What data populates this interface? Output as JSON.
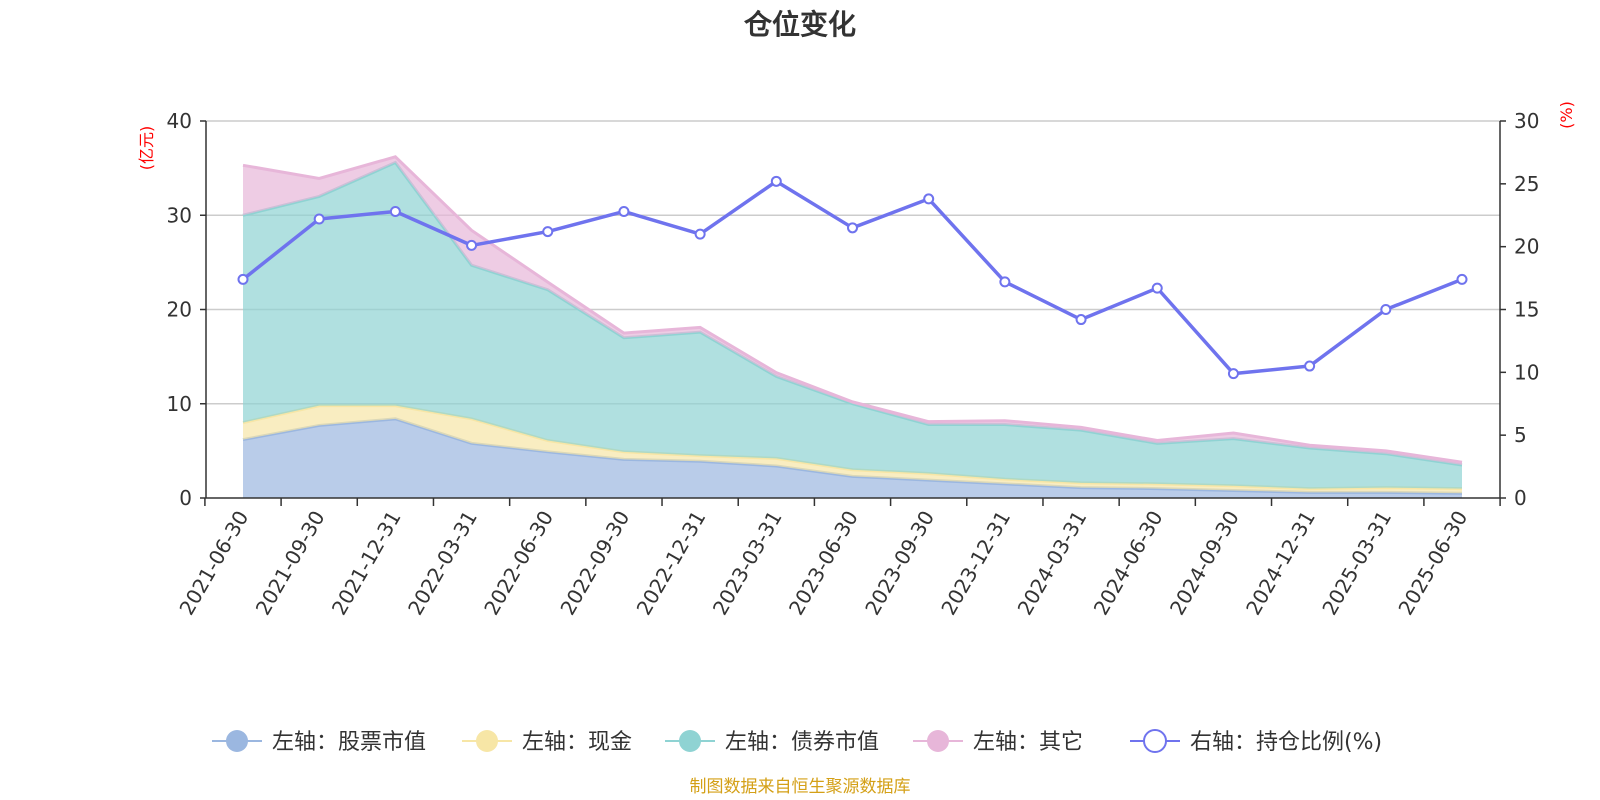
{
  "chart_data": {
    "type": "area",
    "title": "仓位变化",
    "left_axis_unit": "(亿元)",
    "right_axis_unit": "(%)",
    "left_ylim": [
      0,
      40
    ],
    "left_ticks": [
      0,
      10,
      20,
      30,
      40
    ],
    "right_ylim": [
      0,
      30
    ],
    "right_ticks": [
      0,
      5,
      10,
      15,
      20,
      25,
      30
    ],
    "grid": true,
    "legend_position": "bottom",
    "categories": [
      "2021-06-30",
      "2021-09-30",
      "2021-12-31",
      "2022-03-31",
      "2022-06-30",
      "2022-09-30",
      "2022-12-31",
      "2023-03-31",
      "2023-06-30",
      "2023-09-30",
      "2023-12-31",
      "2024-03-31",
      "2024-06-30",
      "2024-09-30",
      "2024-12-31",
      "2025-03-31",
      "2025-06-30"
    ],
    "stacked_series": [
      {
        "name": "左轴：股票市值",
        "axis": "left",
        "color": "#9bb7e0",
        "values": [
          6.2,
          7.7,
          8.4,
          5.8,
          4.9,
          4.1,
          3.9,
          3.4,
          2.3,
          1.9,
          1.5,
          1.1,
          1.0,
          0.8,
          0.6,
          0.6,
          0.5
        ]
      },
      {
        "name": "左轴：现金",
        "axis": "left",
        "color": "#f7e6a6",
        "values": [
          1.8,
          2.1,
          1.4,
          2.6,
          1.2,
          0.8,
          0.6,
          0.8,
          0.7,
          0.7,
          0.5,
          0.5,
          0.5,
          0.5,
          0.4,
          0.5,
          0.5
        ]
      },
      {
        "name": "左轴：债券市值",
        "axis": "left",
        "color": "#8fd3d3",
        "values": [
          22.0,
          22.2,
          25.8,
          16.3,
          16.0,
          12.1,
          13.1,
          8.7,
          7.0,
          5.2,
          5.8,
          5.6,
          4.3,
          5.0,
          4.3,
          3.6,
          2.5
        ]
      },
      {
        "name": "左轴：其它",
        "axis": "left",
        "color": "#e7b6d9",
        "values": [
          5.3,
          1.9,
          0.6,
          3.7,
          0.8,
          0.5,
          0.5,
          0.4,
          0.2,
          0.3,
          0.4,
          0.3,
          0.3,
          0.6,
          0.3,
          0.3,
          0.3
        ]
      }
    ],
    "line_series": {
      "name": "右轴：持仓比例(%)",
      "axis": "right",
      "color": "#6f73ee",
      "values": [
        17.4,
        22.2,
        22.8,
        20.1,
        21.2,
        22.8,
        21.0,
        25.2,
        21.5,
        23.8,
        17.2,
        14.2,
        16.7,
        9.9,
        10.5,
        15.0,
        17.4
      ]
    }
  },
  "legend": [
    {
      "label": "左轴：股票市值",
      "marker": "filled-circle",
      "color": "#9bb7e0"
    },
    {
      "label": "左轴：现金",
      "marker": "filled-circle",
      "color": "#f7e6a6"
    },
    {
      "label": "左轴：债券市值",
      "marker": "filled-circle",
      "color": "#8fd3d3"
    },
    {
      "label": "左轴：其它",
      "marker": "filled-circle",
      "color": "#e7b6d9"
    },
    {
      "label": "右轴：持仓比例(%)",
      "marker": "hollow-circle",
      "color": "#6f73ee"
    }
  ],
  "source": "制图数据来自恒生聚源数据库"
}
